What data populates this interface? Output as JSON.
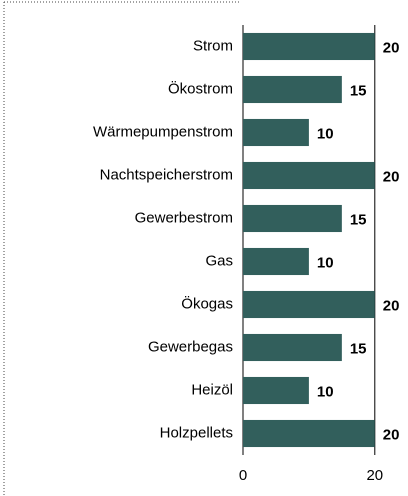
{
  "chart_data": {
    "type": "bar",
    "orientation": "horizontal",
    "categories": [
      "Strom",
      "Ökostrom",
      "Wärmepumpenstrom",
      "Nachtspeicherstrom",
      "Gewerbestrom",
      "Gas",
      "Ökogas",
      "Gewerbegas",
      "Heizöl",
      "Holzpellets"
    ],
    "values": [
      20,
      15,
      10,
      20,
      15,
      10,
      20,
      15,
      10,
      20
    ],
    "color": "#325f5c",
    "xlim": [
      0,
      25
    ],
    "xticks": [
      0,
      20
    ],
    "grid": true
  }
}
